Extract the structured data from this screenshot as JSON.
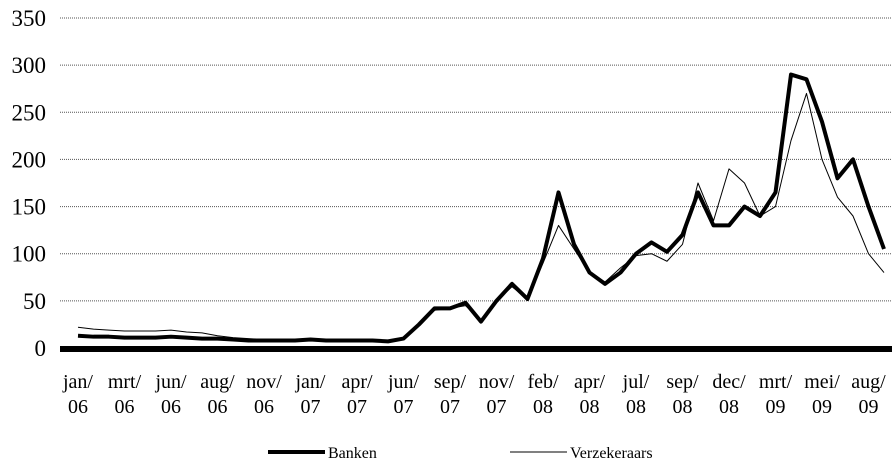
{
  "chart_data": {
    "type": "line",
    "categories": [
      "jan/ 06",
      null,
      null,
      "mrt/ 06",
      null,
      null,
      "jun/ 06",
      null,
      null,
      "aug/ 06",
      null,
      null,
      "nov/ 06",
      null,
      null,
      "jan/ 07",
      null,
      null,
      "apr/ 07",
      null,
      null,
      "jun/ 07",
      null,
      null,
      "sep/ 07",
      null,
      null,
      "nov/ 07",
      null,
      null,
      "feb/ 08",
      null,
      null,
      "apr/ 08",
      null,
      null,
      "jul/ 08",
      null,
      null,
      "sep/ 08",
      null,
      null,
      "dec/ 08",
      null,
      null,
      "mrt/ 09",
      null,
      null,
      "mei/ 09",
      null,
      null,
      "aug/ 09",
      null
    ],
    "series": [
      {
        "name": "Banken",
        "color": "#000000",
        "values": [
          13,
          12,
          12,
          11,
          11,
          11,
          12,
          11,
          10,
          10,
          9,
          8,
          8,
          8,
          8,
          9,
          8,
          8,
          8,
          8,
          7,
          10,
          25,
          42,
          42,
          48,
          28,
          50,
          68,
          52,
          95,
          165,
          110,
          80,
          68,
          80,
          100,
          112,
          102,
          120,
          165,
          130,
          130,
          150,
          140,
          165,
          290,
          285,
          240,
          180,
          200,
          150,
          105
        ]
      },
      {
        "name": "Verzekeraars",
        "color": "#000000",
        "values": [
          22,
          20,
          19,
          18,
          18,
          18,
          19,
          17,
          16,
          13,
          11,
          10,
          9,
          9,
          9,
          9,
          8,
          8,
          8,
          8,
          7,
          10,
          25,
          40,
          42,
          45,
          30,
          50,
          65,
          52,
          90,
          130,
          105,
          80,
          70,
          85,
          98,
          100,
          92,
          110,
          175,
          135,
          190,
          175,
          140,
          150,
          220,
          270,
          200,
          160,
          140,
          100,
          80
        ]
      }
    ],
    "ylim": [
      0,
      350
    ],
    "yticks": [
      0,
      50,
      100,
      150,
      200,
      250,
      300,
      350
    ],
    "grid": true
  }
}
